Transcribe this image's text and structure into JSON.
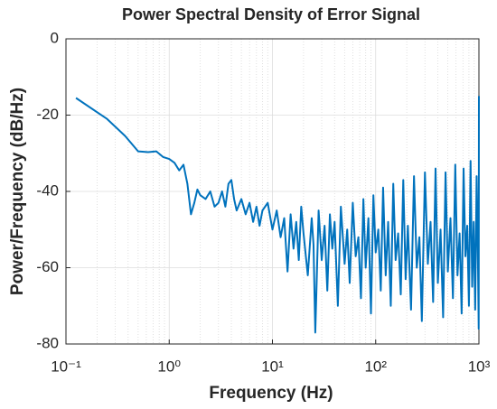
{
  "chart_data": {
    "type": "line",
    "title": "Power Spectral Density of Error Signal",
    "xlabel": "Frequency (Hz)",
    "ylabel": "Power/Frequency (dB/Hz)",
    "color": "#0072bd",
    "xscale": "log",
    "grid": true,
    "xlim": [
      0.1,
      1000
    ],
    "ylim": [
      -80,
      0
    ],
    "xticks": [
      {
        "value": 0.1,
        "label": "10⁻¹"
      },
      {
        "value": 1,
        "label": "10⁰"
      },
      {
        "value": 10,
        "label": "10¹"
      },
      {
        "value": 100,
        "label": "10²"
      },
      {
        "value": 1000,
        "label": "10³"
      }
    ],
    "xminorticks": [
      0.2,
      0.3,
      0.4,
      0.5,
      0.6,
      0.7,
      0.8,
      0.9,
      2,
      3,
      4,
      5,
      6,
      7,
      8,
      9,
      20,
      30,
      40,
      50,
      60,
      70,
      80,
      90,
      200,
      300,
      400,
      500,
      600,
      700,
      800,
      900
    ],
    "yticks": [
      0,
      -20,
      -40,
      -60,
      -80
    ],
    "x": [
      0.125,
      0.25,
      0.375,
      0.5,
      0.625,
      0.75,
      0.875,
      1.0,
      1.125,
      1.25,
      1.375,
      1.5,
      1.625,
      1.75,
      1.875,
      2,
      2.25,
      2.5,
      2.75,
      3,
      3.25,
      3.5,
      3.75,
      4,
      4.25,
      4.5,
      5,
      5.5,
      6,
      6.5,
      7,
      7.5,
      8,
      9,
      10,
      11,
      12,
      13,
      14,
      15,
      16,
      17,
      18,
      19,
      20,
      22,
      24,
      25,
      26,
      28,
      30,
      32,
      34,
      36,
      38,
      40,
      43,
      46,
      50,
      53,
      56,
      60,
      64,
      68,
      72,
      76,
      80,
      85,
      90,
      95,
      100,
      106,
      112,
      118,
      125,
      132,
      140,
      148,
      156,
      165,
      175,
      185,
      195,
      205,
      220,
      235,
      250,
      265,
      280,
      300,
      320,
      340,
      360,
      380,
      400,
      425,
      450,
      475,
      500,
      530,
      560,
      590,
      620,
      650,
      680,
      710,
      740,
      770,
      800,
      830,
      860,
      890,
      920,
      950,
      980,
      995,
      1000
    ],
    "values": [
      -15.5,
      -21,
      -25.5,
      -29.5,
      -29.7,
      -29.5,
      -31,
      -31.5,
      -32.5,
      -34.5,
      -33,
      -38,
      -46,
      -43,
      -39.5,
      -41,
      -42,
      -40,
      -44,
      -43,
      -40,
      -44,
      -38,
      -37,
      -42,
      -45,
      -42,
      -46,
      -43,
      -48,
      -44,
      -49,
      -45,
      -43,
      -50,
      -45,
      -52,
      -47,
      -61,
      -46,
      -55,
      -48,
      -58,
      -44,
      -51,
      -62,
      -47,
      -54,
      -77,
      -45,
      -58,
      -49,
      -66,
      -46,
      -55,
      -48,
      -70,
      -44,
      -59,
      -50,
      -64,
      -43,
      -57,
      -52,
      -68,
      -42,
      -60,
      -47,
      -72,
      -41,
      -56,
      -50,
      -66,
      -39,
      -62,
      -48,
      -70,
      -38,
      -58,
      -51,
      -67,
      -37,
      -63,
      -49,
      -71,
      -36,
      -60,
      -52,
      -74,
      -35,
      -59,
      -48,
      -69,
      -34,
      -64,
      -50,
      -73,
      -35,
      -61,
      -47,
      -68,
      -33,
      -62,
      -51,
      -72,
      -34,
      -57,
      -49,
      -70,
      -32,
      -65,
      -48,
      -71,
      -36,
      -60,
      -76,
      -15
    ]
  }
}
